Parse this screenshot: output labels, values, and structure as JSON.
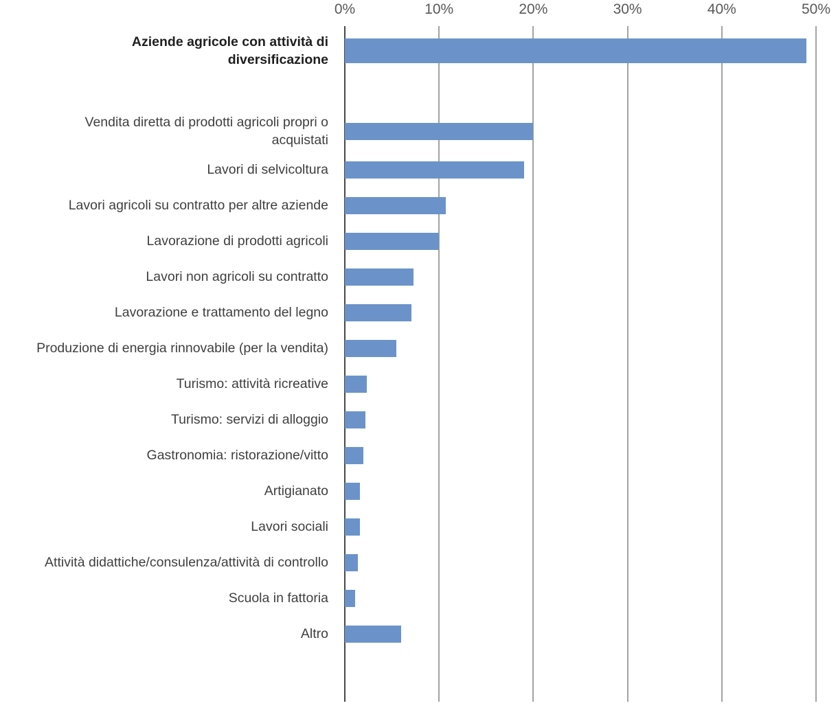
{
  "chart_data": {
    "type": "bar",
    "orientation": "horizontal",
    "title": "",
    "x_axis": {
      "position": "top",
      "min": 0,
      "max": 50,
      "ticks": [
        "0%",
        "10%",
        "20%",
        "30%",
        "40%",
        "50%"
      ],
      "grid": true
    },
    "legend": "none",
    "bar_color": "#6b93c9",
    "categories": [
      "Aziende agricole con attività di diversificazione",
      "Vendita diretta di prodotti agricoli propri o acquistati",
      "Lavori di selvicoltura",
      "Lavori agricoli su contratto per altre aziende",
      "Lavorazione di prodotti agricoli",
      "Lavori non agricoli su contratto",
      "Lavorazione e trattamento del legno",
      "Produzione di energia rinnovabile (per la vendita)",
      "Turismo: attività ricreative",
      "Turismo: servizi di alloggio",
      "Gastronomia: ristorazione/vitto",
      "Artigianato",
      "Lavori sociali",
      "Attività didattiche/consulenza/attività di controllo",
      "Scuola in fattoria",
      "Altro"
    ],
    "values": [
      49,
      20,
      19,
      10.7,
      10,
      7.3,
      7.1,
      5.5,
      2.3,
      2.2,
      2.0,
      1.6,
      1.6,
      1.4,
      1.1,
      6
    ],
    "emphasized_index": 0,
    "group_gap_after_index": 0
  }
}
